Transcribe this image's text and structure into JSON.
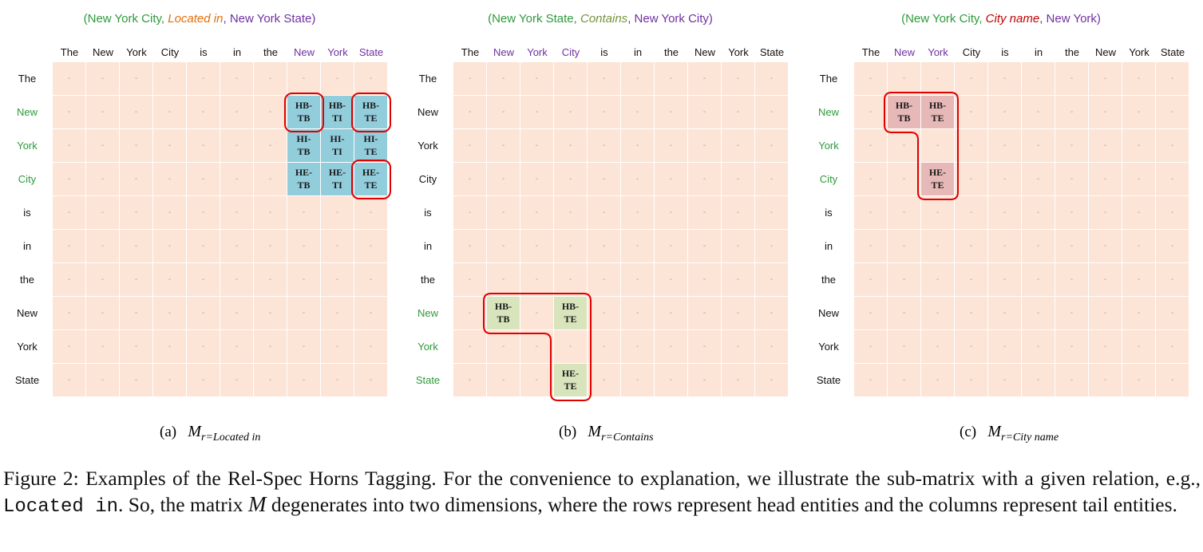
{
  "colors": {
    "head_entity": "#2e9a3b",
    "tail_entity": "#7030a0",
    "rel_located": "#e46c0a",
    "rel_contains": "#76923c",
    "rel_cityname": "#c00000",
    "matrix_bg": "#fce4d6",
    "tag_blue": "#92cddc",
    "tag_green": "#d8e4bc",
    "tag_red": "#e6b8b7",
    "outline": "#e00000"
  },
  "tokens": [
    "The",
    "New",
    "York",
    "City",
    "is",
    "in",
    "the",
    "New",
    "York",
    "State"
  ],
  "empty_mark": "-",
  "panels": [
    {
      "id": "a",
      "title": {
        "open": "(",
        "head": "New York City",
        "sep1": ", ",
        "relation": "Located in",
        "sep2": ", ",
        "tail": "New York State",
        "close": ")"
      },
      "relation_color": "rel_located",
      "head_color_rows": [
        1,
        2,
        3
      ],
      "tail_color_cols": [
        7,
        8,
        9
      ],
      "tag_color": "tag_blue",
      "tags": [
        {
          "row": 1,
          "col": 7,
          "l1": "HB-",
          "l2": "TB"
        },
        {
          "row": 1,
          "col": 8,
          "l1": "HB-",
          "l2": "TI"
        },
        {
          "row": 1,
          "col": 9,
          "l1": "HB-",
          "l2": "TE"
        },
        {
          "row": 2,
          "col": 7,
          "l1": "HI-",
          "l2": "TB"
        },
        {
          "row": 2,
          "col": 8,
          "l1": "HI-",
          "l2": "TI"
        },
        {
          "row": 2,
          "col": 9,
          "l1": "HI-",
          "l2": "TE"
        },
        {
          "row": 3,
          "col": 7,
          "l1": "HE-",
          "l2": "TB"
        },
        {
          "row": 3,
          "col": 8,
          "l1": "HE-",
          "l2": "TI"
        },
        {
          "row": 3,
          "col": 9,
          "l1": "HE-",
          "l2": "TE"
        }
      ],
      "caption": {
        "label": "(a)",
        "symbol": "M",
        "subscript": "r=Located in"
      }
    },
    {
      "id": "b",
      "title": {
        "open": "(",
        "head": "New York State",
        "sep1": ", ",
        "relation": "Contains",
        "sep2": ", ",
        "tail": "New York City",
        "close": ")"
      },
      "relation_color": "rel_contains",
      "head_color_rows": [
        7,
        8,
        9
      ],
      "tail_color_cols": [
        1,
        2,
        3
      ],
      "tag_color": "tag_green",
      "tags": [
        {
          "row": 7,
          "col": 1,
          "l1": "HB-",
          "l2": "TB"
        },
        {
          "row": 7,
          "col": 3,
          "l1": "HB-",
          "l2": "TE"
        },
        {
          "row": 9,
          "col": 3,
          "l1": "HE-",
          "l2": "TE"
        }
      ],
      "caption": {
        "label": "(b)",
        "symbol": "M",
        "subscript": "r=Contains"
      }
    },
    {
      "id": "c",
      "title": {
        "open": "(",
        "head": "New York City",
        "sep1": ", ",
        "relation": "City name",
        "sep2": ", ",
        "tail": "New York",
        "close": ")"
      },
      "relation_color": "rel_cityname",
      "head_color_rows": [
        1,
        2,
        3
      ],
      "tail_color_cols": [
        1,
        2
      ],
      "tag_color": "tag_red",
      "tags": [
        {
          "row": 1,
          "col": 1,
          "l1": "HB-",
          "l2": "TB"
        },
        {
          "row": 1,
          "col": 2,
          "l1": "HB-",
          "l2": "TE"
        },
        {
          "row": 3,
          "col": 2,
          "l1": "HE-",
          "l2": "TE"
        }
      ],
      "caption": {
        "label": "(c)",
        "symbol": "M",
        "subscript": "r=City name"
      }
    }
  ],
  "figure_caption": {
    "part1": "Figure 2: Examples of the Rel-Spec Horns Tagging. For the convenience to explanation, we illustrate the sub-matrix with a given relation, e.g., ",
    "code": "Located in",
    "part2": ". So, the matrix ",
    "symbol": "M",
    "part3": " degenerates into two dimensions, where the rows represent head entities and the columns represent tail entities."
  }
}
